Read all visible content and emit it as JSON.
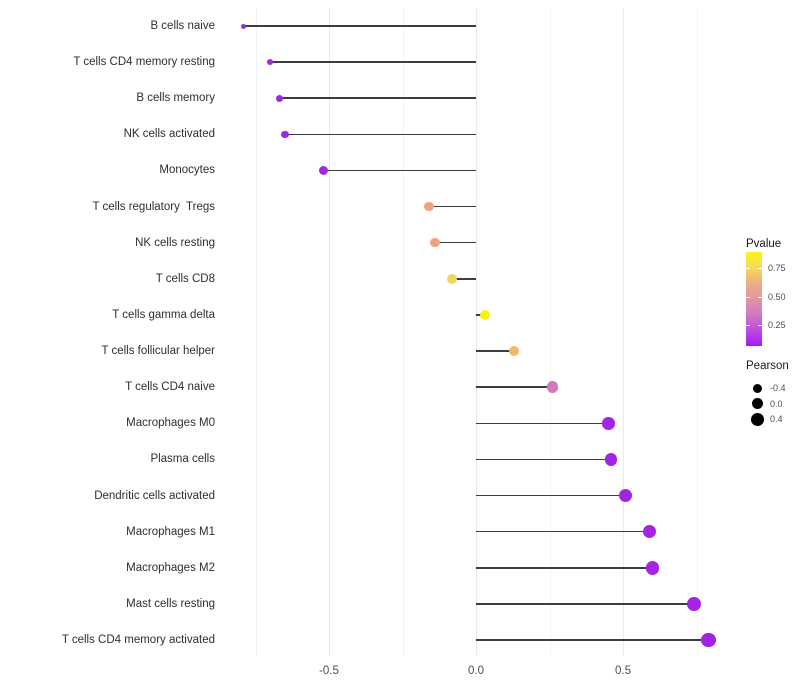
{
  "chart_data": {
    "type": "lollipop",
    "orientation": "horizontal",
    "title": "",
    "xlabel": "",
    "ylabel": "",
    "grid": true,
    "xlim": [
      -0.87,
      0.87
    ],
    "x_ticks": [
      {
        "value": -0.5,
        "label": "-0.5"
      },
      {
        "value": 0.0,
        "label": "0.0"
      },
      {
        "value": 0.5,
        "label": "0.5"
      }
    ],
    "gridline_values": [
      -0.75,
      -0.5,
      -0.25,
      0,
      0.25,
      0.5,
      0.75
    ],
    "baseline": 0,
    "points": [
      {
        "label": "B cells naive",
        "pearson": -0.79,
        "size": 5,
        "color": "#9A2ED5"
      },
      {
        "label": "T cells CD4 memory resting",
        "pearson": -0.7,
        "size": 6.5,
        "color": "#9D2BDA"
      },
      {
        "label": "B cells memory",
        "pearson": -0.67,
        "size": 7,
        "color": "#9D2BDA"
      },
      {
        "label": "NK cells activated",
        "pearson": -0.65,
        "size": 7.5,
        "color": "#9D2BDA"
      },
      {
        "label": "Monocytes",
        "pearson": -0.52,
        "size": 9,
        "color": "#A229DF"
      },
      {
        "label": "T cells regulatory  Tregs",
        "pearson": -0.16,
        "size": 9.5,
        "color": "#EDA57D"
      },
      {
        "label": "NK cells resting",
        "pearson": -0.14,
        "size": 9.5,
        "color": "#EDA57D"
      },
      {
        "label": "T cells CD8",
        "pearson": -0.08,
        "size": 10,
        "color": "#EED75E"
      },
      {
        "label": "T cells gamma delta",
        "pearson": 0.03,
        "size": 10.5,
        "color": "#F8F211"
      },
      {
        "label": "T cells follicular helper",
        "pearson": 0.13,
        "size": 10.5,
        "color": "#EFB969"
      },
      {
        "label": "T cells CD4 naive",
        "pearson": 0.26,
        "size": 11.5,
        "color": "#D478B8"
      },
      {
        "label": "Macrophages M0",
        "pearson": 0.45,
        "size": 12.5,
        "color": "#A524E4"
      },
      {
        "label": "Plasma cells",
        "pearson": 0.46,
        "size": 12.5,
        "color": "#A524E4"
      },
      {
        "label": "Dendritic cells activated",
        "pearson": 0.51,
        "size": 13,
        "color": "#A524E4"
      },
      {
        "label": "Macrophages M1",
        "pearson": 0.59,
        "size": 13.5,
        "color": "#A524E4"
      },
      {
        "label": "Macrophages M2",
        "pearson": 0.6,
        "size": 13.5,
        "color": "#A524E4"
      },
      {
        "label": "Mast cells resting",
        "pearson": 0.74,
        "size": 14,
        "color": "#A322E8"
      },
      {
        "label": "T cells CD4 memory activated",
        "pearson": 0.79,
        "size": 14.5,
        "color": "#A322E8"
      }
    ],
    "legend": {
      "pvalue": {
        "title": "Pvalue",
        "ticks": [
          "0.75",
          "0.50",
          "0.25"
        ],
        "gradient_top_to_bottom": [
          "#FBF216",
          "#F5D95A",
          "#ECAF83",
          "#E096A2",
          "#D079C4",
          "#BC4CE0",
          "#A818F2"
        ]
      },
      "pearson": {
        "title": "Pearson",
        "dot_color": "#000000",
        "items": [
          {
            "label": "-0.4",
            "size": 9
          },
          {
            "label": "0.0",
            "size": 11
          },
          {
            "label": "0.4",
            "size": 13
          }
        ]
      }
    },
    "style_colors": {
      "stem": "#3d3d3d",
      "grid_major": "#ebebeb",
      "grid_minor": "#f3f3f3",
      "axis_text": "#4d4d4d",
      "category_text": "#2e2e2e",
      "background": "#ffffff"
    }
  }
}
